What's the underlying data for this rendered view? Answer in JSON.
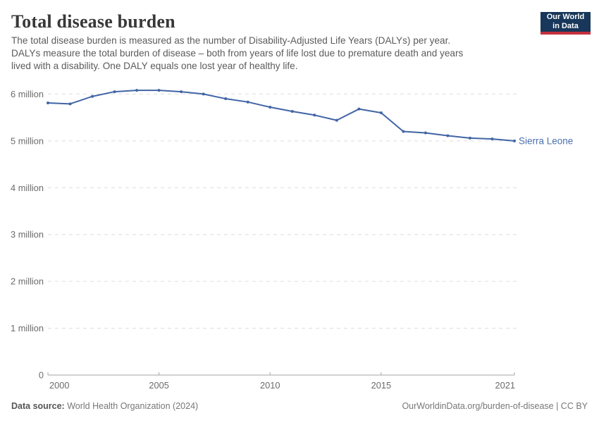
{
  "header": {
    "title": "Total disease burden",
    "subtitle_lines": [
      "The total disease burden is measured as the number of Disability-Adjusted Life Years (DALYs) per year.",
      "DALYs measure the total burden of disease – both from years of life lost due to premature death and years",
      "lived with a disability. One DALY equals one lost year of healthy life."
    ],
    "logo": {
      "line1": "Our World",
      "line2": "in Data"
    }
  },
  "chart_data": {
    "type": "line",
    "title": "Total disease burden",
    "unit": "DALYs per year (millions)",
    "x": [
      2000,
      2001,
      2002,
      2003,
      2004,
      2005,
      2006,
      2007,
      2008,
      2009,
      2010,
      2011,
      2012,
      2013,
      2014,
      2015,
      2016,
      2017,
      2018,
      2019,
      2020,
      2021
    ],
    "series": [
      {
        "name": "Sierra Leone",
        "color": "#4165a5",
        "values": [
          5.81,
          5.79,
          5.95,
          6.05,
          6.08,
          6.08,
          6.05,
          6.0,
          5.9,
          5.83,
          5.72,
          5.63,
          5.55,
          5.44,
          5.68,
          5.6,
          5.2,
          5.17,
          5.11,
          5.06,
          5.04,
          5.0
        ]
      }
    ],
    "xlim": [
      2000,
      2021
    ],
    "ylim": [
      0,
      6.4
    ],
    "x_ticks": [
      {
        "v": 2000,
        "label": "2000"
      },
      {
        "v": 2005,
        "label": "2005"
      },
      {
        "v": 2010,
        "label": "2010"
      },
      {
        "v": 2015,
        "label": "2015"
      },
      {
        "v": 2021,
        "label": "2021"
      }
    ],
    "y_ticks": [
      {
        "v": 0,
        "label": "0"
      },
      {
        "v": 1,
        "label": "1 million"
      },
      {
        "v": 2,
        "label": "2 million"
      },
      {
        "v": 3,
        "label": "3 million"
      },
      {
        "v": 4,
        "label": "4 million"
      },
      {
        "v": 5,
        "label": "5 million"
      },
      {
        "v": 6,
        "label": "6 million"
      }
    ],
    "grid": "horizontal-dashed",
    "legend_position": "line-end-label"
  },
  "footer": {
    "source_label": "Data source:",
    "source_text": " World Health Organization (2024)",
    "credit": "OurWorldinData.org/burden-of-disease | CC BY"
  },
  "colors": {
    "line": "#4165a5",
    "entity_label": "#4a70ad",
    "grid": "#dddddd",
    "axis": "#a5a5a5",
    "tick_label": "#6b6b6b"
  }
}
